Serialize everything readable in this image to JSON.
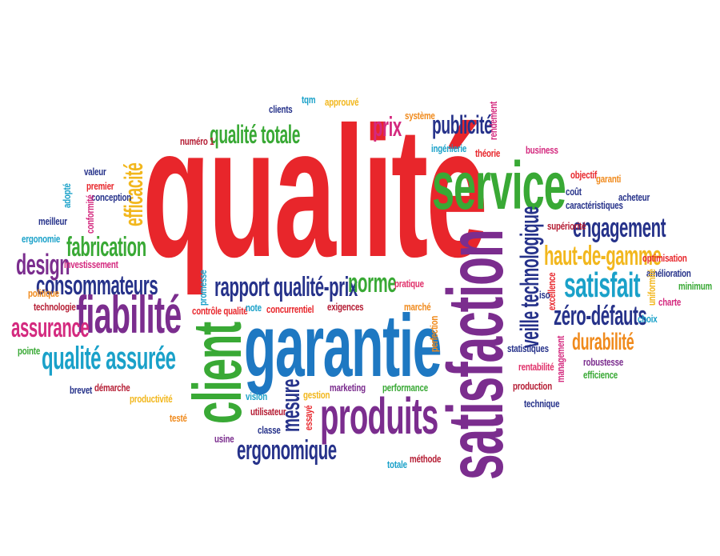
{
  "colors": {
    "red": "#e8262b",
    "purple": "#7b2d8e",
    "blue": "#1e78c2",
    "green": "#39a935",
    "teal": "#1aa1c9",
    "orange": "#f08a1c",
    "yellow": "#f2b71d",
    "magenta": "#d42a7f",
    "navy": "#26328a",
    "lime": "#8cbf26",
    "darkred": "#b51d34",
    "pink": "#e0306a"
  },
  "words": {
    "qualite": "qualité",
    "satisfaction": "satisfaction",
    "garantie": "garantie",
    "client": "client",
    "service": "service",
    "produits": "produits",
    "fiabilite": "fiabilité",
    "qualite_assuree": "qualité assurée",
    "satisfait": "satisfait",
    "publicite": "publicité",
    "prix": "prix",
    "qualite_totale": "qualité totale",
    "rapport_qualite_prix": "rapport qualité-prix",
    "norme": "norme",
    "engagement": "engagement",
    "haut_de_gamme": "haut-de-gamme",
    "zero_defauts": "zéro-défauts",
    "durabilite": "durabilité",
    "veille_technologique": "veille technologique",
    "ergonomique": "ergonomique",
    "mesure": "mesure",
    "fabrication": "fabrication",
    "design": "design",
    "consommateurs": "consommateurs",
    "assurance": "assurance",
    "efficacite": "efficacité",
    "clients": "clients",
    "tqm": "tqm",
    "approuve": "approuvé",
    "systeme": "système",
    "rendement": "rendement",
    "ingenierie": "ingénierie",
    "theorie": "théorie",
    "business": "business",
    "numero_1": "numéro 1",
    "valeur": "valeur",
    "premier": "premier",
    "conception": "conception",
    "conformite": "conformité",
    "adopte": "adopté",
    "meilleur": "meilleur",
    "ergonomie": "ergonomie",
    "investissement": "investissement",
    "politique": "politique",
    "technologie": "technologie",
    "pointe": "pointe",
    "brevet": "brevet",
    "demarche": "démarche",
    "productivite": "productivité",
    "teste": "testé",
    "usine": "usine",
    "promesse": "promesse",
    "controle_qualite": "contrôle qualité",
    "note": "note",
    "concurrentiel": "concurrentiel",
    "exigences": "exigences",
    "pratique": "pratique",
    "marche": "marché",
    "perfection": "perfection",
    "vision": "vision",
    "gestion": "gestion",
    "utilisateur": "utilisateur",
    "classe": "classe",
    "essaye": "essayé",
    "marketing": "marketing",
    "performance": "performance",
    "totale": "totale",
    "methode": "méthode",
    "objectif": "objectif",
    "garanti": "garanti",
    "cout": "coût",
    "caracteristiques": "caractéristiques",
    "acheteur": "acheteur",
    "superiorite": "supériorité",
    "optimisation": "optimisation",
    "amelioration": "amélioration",
    "minimum": "minimum",
    "iso": "iso",
    "excellence": "excellence",
    "uniformite": "uniformité",
    "charte": "charte",
    "choix": "choix",
    "statistiques": "statistiques",
    "management": "management",
    "rentabilite": "rentabilité",
    "robustesse": "robustesse",
    "efficience": "efficience",
    "production": "production",
    "technique": "technique"
  }
}
